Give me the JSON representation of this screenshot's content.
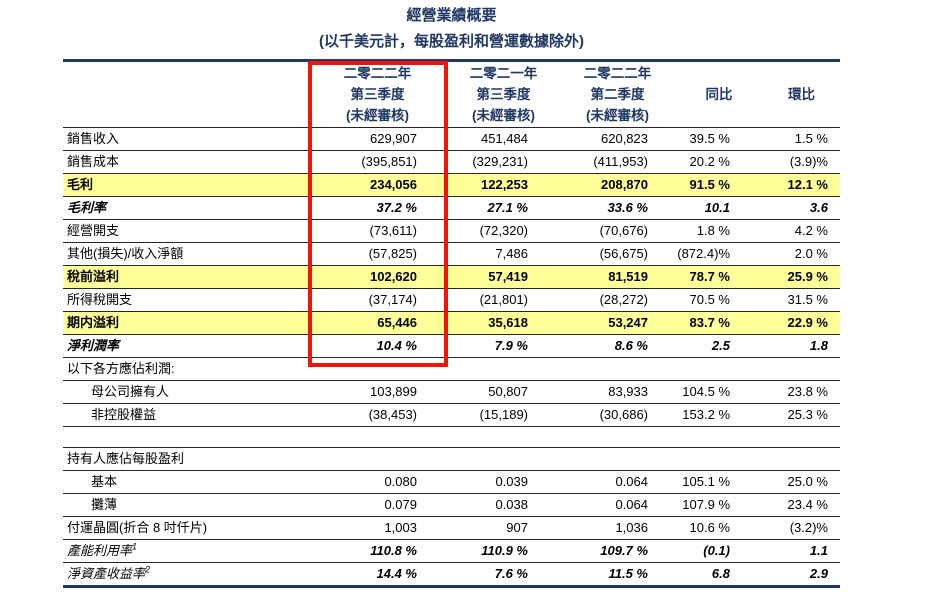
{
  "title": "經營業績概要",
  "subtitle": "(以千美元計，每股盈利和營運數據除外)",
  "colors": {
    "heading_navy": "#1F3864",
    "row_highlight_yellow": "#FFFF99",
    "emphasis_box_red": "#F01406",
    "grid_line": "#262626"
  },
  "table": {
    "column_headers": [
      {
        "lines": [
          "二零二二年",
          "第三季度",
          "(未經審核)"
        ],
        "emphasized": true
      },
      {
        "lines": [
          "二零二一年",
          "第三季度",
          "(未經審核)"
        ],
        "emphasized": false
      },
      {
        "lines": [
          "二零二二年",
          "第二季度",
          "(未經審核)"
        ],
        "emphasized": false
      },
      {
        "lines": [
          "同比"
        ],
        "emphasized": false
      },
      {
        "lines": [
          "環比"
        ],
        "emphasized": false
      }
    ],
    "rows": [
      {
        "label": "銷售收入",
        "values": [
          "629,907",
          "451,484",
          "620,823",
          "39.5 %",
          "1.5 %"
        ],
        "style": "normal"
      },
      {
        "label": "銷售成本",
        "values": [
          "(395,851)",
          "(329,231)",
          "(411,953)",
          "20.2 %",
          "(3.9)%"
        ],
        "style": "normal"
      },
      {
        "label": "毛利",
        "values": [
          "234,056",
          "122,253",
          "208,870",
          "91.5 %",
          "12.1 %"
        ],
        "style": "highlight"
      },
      {
        "label": "毛利率",
        "values": [
          "37.2 %",
          "27.1 %",
          "33.6 %",
          "10.1",
          "3.6"
        ],
        "style": "rate"
      },
      {
        "label": "經營開支",
        "values": [
          "(73,611)",
          "(72,320)",
          "(70,676)",
          "1.8 %",
          "4.2 %"
        ],
        "style": "normal"
      },
      {
        "label": "其他(損失)/收入淨額",
        "values": [
          "(57,825)",
          "7,486",
          "(56,675)",
          "(872.4)%",
          "2.0 %"
        ],
        "style": "normal"
      },
      {
        "label": "稅前溢利",
        "values": [
          "102,620",
          "57,419",
          "81,519",
          "78.7 %",
          "25.9 %"
        ],
        "style": "highlight"
      },
      {
        "label": "所得稅開支",
        "values": [
          "(37,174)",
          "(21,801)",
          "(28,272)",
          "70.5 %",
          "31.5 %"
        ],
        "style": "normal"
      },
      {
        "label": "期内溢利",
        "values": [
          "65,446",
          "35,618",
          "53,247",
          "83.7 %",
          "22.9 %"
        ],
        "style": "highlight"
      },
      {
        "label": "淨利潤率",
        "values": [
          "10.4 %",
          "7.9 %",
          "8.6 %",
          "2.5",
          "1.8"
        ],
        "style": "rate"
      },
      {
        "label": "以下各方應佔利潤:",
        "values": [
          "",
          "",
          "",
          "",
          ""
        ],
        "style": "section"
      },
      {
        "label": "母公司擁有人",
        "values": [
          "103,899",
          "50,807",
          "83,933",
          "104.5 %",
          "23.8 %"
        ],
        "style": "indent"
      },
      {
        "label": "非控股權益",
        "values": [
          "(38,453)",
          "(15,189)",
          "(30,686)",
          "153.2 %",
          "25.3 %"
        ],
        "style": "indent"
      },
      {
        "label": "",
        "values": [
          "",
          "",
          "",
          "",
          ""
        ],
        "style": "spacer"
      },
      {
        "label": "持有人應佔每股盈利",
        "values": [
          "",
          "",
          "",
          "",
          ""
        ],
        "style": "section-top"
      },
      {
        "label": "基本",
        "values": [
          "0.080",
          "0.039",
          "0.064",
          "105.1 %",
          "25.0 %"
        ],
        "style": "indent"
      },
      {
        "label": "攤薄",
        "values": [
          "0.079",
          "0.038",
          "0.064",
          "107.9 %",
          "23.4 %"
        ],
        "style": "indent"
      },
      {
        "label": "付運晶圓(折合 8 吋仟片)",
        "values": [
          "1,003",
          "907",
          "1,036",
          "10.6 %",
          "(3.2)%"
        ],
        "style": "normal"
      },
      {
        "label": "產能利用率",
        "label_sup": "1",
        "values": [
          "110.8 %",
          "110.9 %",
          "109.7 %",
          "(0.1)",
          "1.1"
        ],
        "style": "rate-light"
      },
      {
        "label": "淨資產收益率",
        "label_sup": "2",
        "values": [
          "14.4 %",
          "7.6 %",
          "11.5 %",
          "6.8",
          "2.9"
        ],
        "style": "rate-light"
      }
    ]
  },
  "emphasis_box": {
    "column": "二零二二年第三季度(未經審核)",
    "color": "#F01406"
  }
}
